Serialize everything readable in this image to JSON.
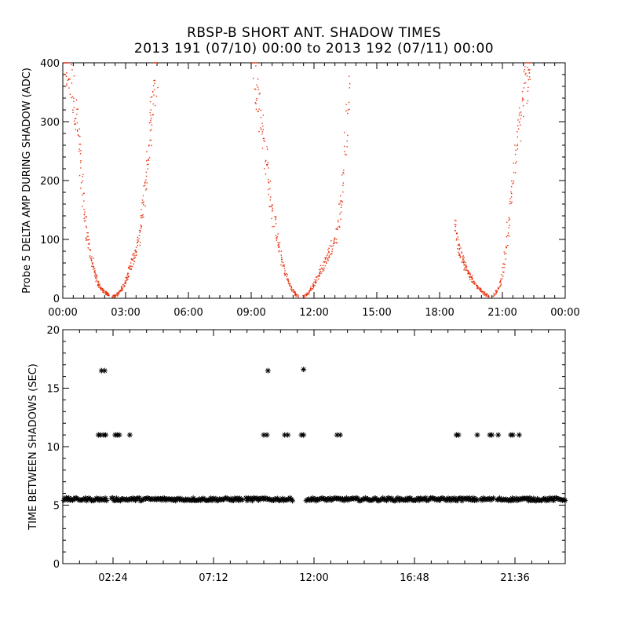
{
  "title": "RBSP-B SHORT ANT. SHADOW TIMES",
  "subtitle": "2013 191 (07/10) 00:00 to 2013 192 (07/11) 00:00",
  "chart_data": [
    {
      "type": "scatter",
      "ylabel": "Probe 5 DELTA AMP DURING SHADOW (ADC)",
      "xlabel": "",
      "xlim_hours": [
        0,
        24
      ],
      "ylim": [
        0,
        400
      ],
      "x_tick_labels": [
        "00:00",
        "03:00",
        "06:00",
        "09:00",
        "12:00",
        "15:00",
        "18:00",
        "21:00",
        "00:00"
      ],
      "x_tick_values_hours": [
        0,
        3,
        6,
        9,
        12,
        15,
        18,
        21,
        24
      ],
      "y_tick_labels": [
        "0",
        "100",
        "200",
        "300",
        "400"
      ],
      "y_tick_values": [
        0,
        100,
        200,
        300,
        400
      ],
      "marker": "dot",
      "color": "#e8300c",
      "series": [
        {
          "segments": [
            {
              "x": [
                0.05,
                0.3,
                0.55,
                0.75,
                0.9,
                1.05,
                1.2,
                1.35,
                1.5,
                1.65,
                1.8,
                1.95,
                2.1,
                2.2
              ],
              "y": [
                400,
                380,
                340,
                280,
                200,
                140,
                100,
                70,
                45,
                28,
                18,
                12,
                8,
                6
              ]
            },
            {
              "x": [
                2.4,
                2.55,
                2.7,
                2.85,
                3.0,
                3.15,
                3.3,
                3.45,
                3.6,
                3.75,
                3.9,
                4.05,
                4.2,
                4.35,
                4.5
              ],
              "y": [
                3,
                5,
                10,
                18,
                30,
                45,
                60,
                75,
                95,
                130,
                180,
                240,
                300,
                350,
                400
              ]
            }
          ]
        },
        {
          "segments": [
            {
              "x": [
                9.1,
                9.3,
                9.5,
                9.7,
                9.9,
                10.1,
                10.3,
                10.5,
                10.7,
                10.9,
                11.1,
                11.25
              ],
              "y": [
                400,
                360,
                300,
                240,
                180,
                130,
                90,
                60,
                35,
                18,
                8,
                3
              ]
            },
            {
              "x": [
                11.5,
                11.7,
                11.9,
                12.1,
                12.3,
                12.5,
                12.7,
                12.9,
                13.1,
                13.3,
                13.5,
                13.7
              ],
              "y": [
                3,
                8,
                18,
                30,
                45,
                60,
                75,
                90,
                110,
                160,
                260,
                400
              ]
            }
          ]
        },
        {
          "segments": [
            {
              "x": [
                18.7,
                18.85,
                19.0,
                19.15,
                19.3,
                19.45,
                19.6,
                19.8,
                20.0,
                20.2,
                20.35
              ],
              "y": [
                130,
                95,
                75,
                60,
                50,
                40,
                30,
                20,
                12,
                6,
                3
              ]
            },
            {
              "x": [
                20.6,
                20.8,
                21.0,
                21.2,
                21.4,
                21.6,
                21.8,
                22.0,
                22.2,
                22.35
              ],
              "y": [
                5,
                15,
                40,
                90,
                160,
                230,
                290,
                340,
                380,
                400
              ]
            }
          ]
        }
      ]
    },
    {
      "type": "scatter",
      "ylabel": "TIME BETWEEN SHADOWS (SEC)",
      "xlabel": "",
      "xlim_hours": [
        0,
        24
      ],
      "ylim": [
        0,
        20
      ],
      "x_tick_labels": [
        "02:24",
        "07:12",
        "12:00",
        "16:48",
        "21:36"
      ],
      "x_tick_values_hours": [
        2.4,
        7.2,
        12.0,
        16.8,
        21.6
      ],
      "y_tick_labels": [
        "0",
        "5",
        "10",
        "15",
        "20"
      ],
      "y_tick_values": [
        0,
        5,
        10,
        15,
        20
      ],
      "marker": "asterisk",
      "color": "#000000",
      "baseline_value": 5.5,
      "baseline_gaps_hours": [
        [
          2.1,
          2.3
        ],
        [
          8.6,
          8.7
        ],
        [
          11.0,
          11.6
        ],
        [
          19.8,
          19.95
        ],
        [
          20.6,
          20.7
        ]
      ],
      "points": [
        {
          "x": 1.7,
          "y": 11.0
        },
        {
          "x": 1.8,
          "y": 11.0
        },
        {
          "x": 1.95,
          "y": 11.0
        },
        {
          "x": 2.05,
          "y": 11.0
        },
        {
          "x": 1.85,
          "y": 16.5
        },
        {
          "x": 2.0,
          "y": 16.5
        },
        {
          "x": 2.5,
          "y": 11.0
        },
        {
          "x": 2.6,
          "y": 11.0
        },
        {
          "x": 2.7,
          "y": 11.0
        },
        {
          "x": 3.2,
          "y": 11.0
        },
        {
          "x": 9.6,
          "y": 11.0
        },
        {
          "x": 9.75,
          "y": 11.0
        },
        {
          "x": 9.8,
          "y": 16.5
        },
        {
          "x": 10.6,
          "y": 11.0
        },
        {
          "x": 10.75,
          "y": 11.0
        },
        {
          "x": 11.4,
          "y": 11.0
        },
        {
          "x": 11.5,
          "y": 11.0
        },
        {
          "x": 11.5,
          "y": 16.6
        },
        {
          "x": 13.1,
          "y": 11.0
        },
        {
          "x": 13.25,
          "y": 11.0
        },
        {
          "x": 18.8,
          "y": 11.0
        },
        {
          "x": 18.9,
          "y": 11.0
        },
        {
          "x": 19.8,
          "y": 11.0
        },
        {
          "x": 20.4,
          "y": 11.0
        },
        {
          "x": 20.5,
          "y": 11.0
        },
        {
          "x": 20.8,
          "y": 11.0
        },
        {
          "x": 21.4,
          "y": 11.0
        },
        {
          "x": 21.5,
          "y": 11.0
        },
        {
          "x": 21.8,
          "y": 11.0
        }
      ]
    }
  ]
}
